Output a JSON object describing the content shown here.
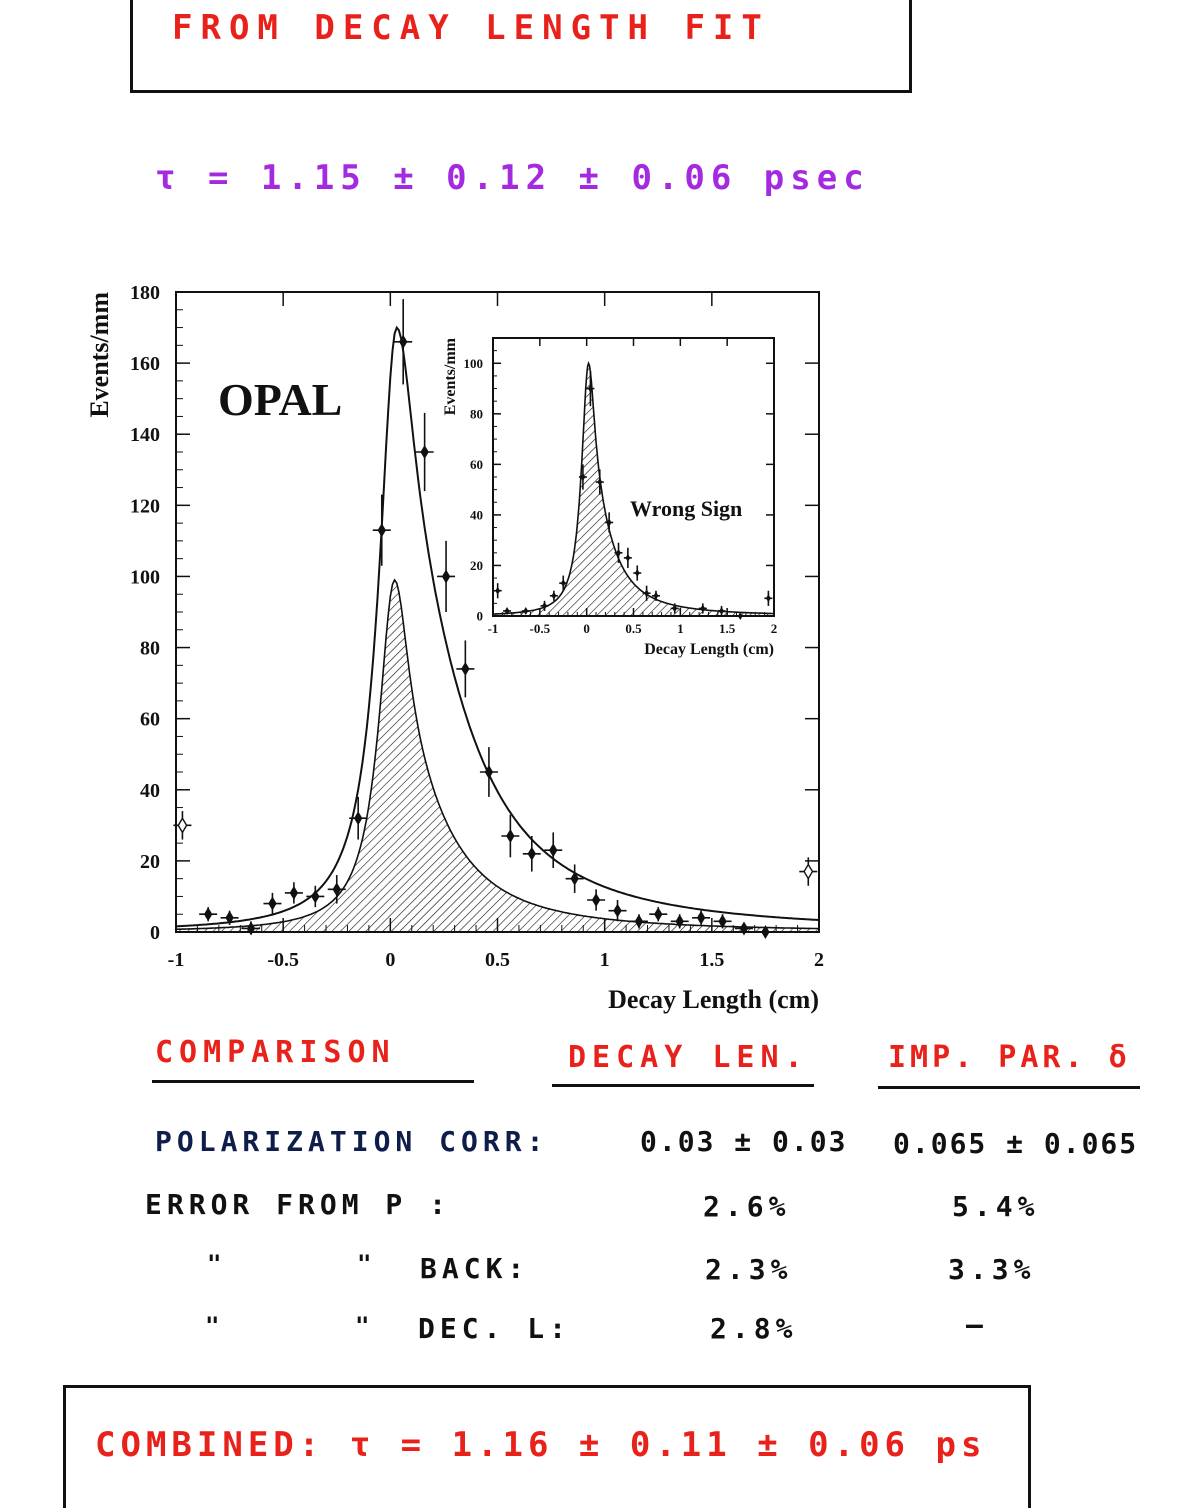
{
  "header": {
    "title": "FROM DECAY LENGTH FIT"
  },
  "lifetime": {
    "text": "τ = 1.15 ± 0.12 ± 0.06 psec"
  },
  "chart_data": [
    {
      "type": "line",
      "label": "OPAL",
      "xlabel": "Decay Length (cm)",
      "ylabel": "Events/mm",
      "xlim": [
        -1,
        2
      ],
      "ylim": [
        0,
        180
      ],
      "xticks": [
        "-1",
        "-0.5",
        "0",
        "0.5",
        "1",
        "1.5",
        "2"
      ],
      "yticks": [
        "0",
        "20",
        "40",
        "60",
        "80",
        "100",
        "120",
        "140",
        "160",
        "180"
      ],
      "points": [
        {
          "x": -0.85,
          "y": 5,
          "err": 2
        },
        {
          "x": -0.75,
          "y": 4,
          "err": 2
        },
        {
          "x": -0.65,
          "y": 1,
          "err": 2
        },
        {
          "x": -0.55,
          "y": 8,
          "err": 3
        },
        {
          "x": -0.45,
          "y": 11,
          "err": 3
        },
        {
          "x": -0.35,
          "y": 10,
          "err": 3
        },
        {
          "x": -0.25,
          "y": 12,
          "err": 4
        },
        {
          "x": -0.15,
          "y": 32,
          "err": 6
        },
        {
          "x": -0.04,
          "y": 113,
          "err": 10
        },
        {
          "x": 0.06,
          "y": 166,
          "err": 12
        },
        {
          "x": 0.16,
          "y": 135,
          "err": 11
        },
        {
          "x": 0.26,
          "y": 100,
          "err": 10
        },
        {
          "x": 0.35,
          "y": 74,
          "err": 8
        },
        {
          "x": 0.46,
          "y": 45,
          "err": 7
        },
        {
          "x": 0.56,
          "y": 27,
          "err": 6
        },
        {
          "x": 0.66,
          "y": 22,
          "err": 5
        },
        {
          "x": 0.76,
          "y": 23,
          "err": 5
        },
        {
          "x": 0.86,
          "y": 15,
          "err": 4
        },
        {
          "x": 0.96,
          "y": 9,
          "err": 3
        },
        {
          "x": 1.06,
          "y": 6,
          "err": 3
        },
        {
          "x": 1.16,
          "y": 3,
          "err": 2
        },
        {
          "x": 1.25,
          "y": 5,
          "err": 2
        },
        {
          "x": 1.35,
          "y": 3,
          "err": 2
        },
        {
          "x": 1.45,
          "y": 4,
          "err": 2
        },
        {
          "x": 1.55,
          "y": 3,
          "err": 2
        },
        {
          "x": 1.65,
          "y": 1,
          "err": 1
        },
        {
          "x": 1.75,
          "y": 0,
          "err": 1
        }
      ],
      "overflow_points": [
        {
          "x": -0.97,
          "y": 30,
          "err": 4
        },
        {
          "x": 1.95,
          "y": 17,
          "err": 4
        }
      ],
      "fit_peak": 170,
      "background_peak": 99
    },
    {
      "type": "line",
      "label": "Wrong Sign",
      "xlabel": "Decay Length (cm)",
      "ylabel": "Events/mm",
      "xlim": [
        -1,
        2
      ],
      "ylim": [
        0,
        110
      ],
      "xticks": [
        "-1",
        "-0.5",
        "0",
        "0.5",
        "1",
        "1.5",
        "2"
      ],
      "yticks": [
        "0",
        "20",
        "40",
        "60",
        "80",
        "100"
      ],
      "points": [
        {
          "x": -0.95,
          "y": 10,
          "err": 3
        },
        {
          "x": -0.85,
          "y": 2,
          "err": 1
        },
        {
          "x": -0.65,
          "y": 2,
          "err": 1
        },
        {
          "x": -0.45,
          "y": 4,
          "err": 2
        },
        {
          "x": -0.35,
          "y": 8,
          "err": 2
        },
        {
          "x": -0.25,
          "y": 13,
          "err": 3
        },
        {
          "x": -0.04,
          "y": 55,
          "err": 5
        },
        {
          "x": 0.04,
          "y": 90,
          "err": 7
        },
        {
          "x": 0.14,
          "y": 53,
          "err": 5
        },
        {
          "x": 0.24,
          "y": 37,
          "err": 4
        },
        {
          "x": 0.34,
          "y": 25,
          "err": 4
        },
        {
          "x": 0.44,
          "y": 23,
          "err": 4
        },
        {
          "x": 0.54,
          "y": 17,
          "err": 3
        },
        {
          "x": 0.64,
          "y": 9,
          "err": 3
        },
        {
          "x": 0.74,
          "y": 8,
          "err": 2
        },
        {
          "x": 0.94,
          "y": 3,
          "err": 2
        },
        {
          "x": 1.24,
          "y": 3,
          "err": 2
        },
        {
          "x": 1.44,
          "y": 2,
          "err": 2
        },
        {
          "x": 1.64,
          "y": 0,
          "err": 1
        },
        {
          "x": 1.94,
          "y": 7,
          "err": 3
        }
      ],
      "fit_peak": 100
    }
  ],
  "comparison": {
    "headers": [
      "COMPARISON",
      "DECAY LEN.",
      "IMP. PAR. δ"
    ],
    "rows": [
      {
        "label": "POLARIZATION CORR:",
        "decay": "0.03 ± 0.03",
        "imp": "0.065 ± 0.065"
      },
      {
        "label": "ERROR FROM P :",
        "decay": "2.6%",
        "imp": "5.4%"
      },
      {
        "ditto1": "\"",
        "ditto2": "\"",
        "label": "BACK:",
        "decay": "2.3%",
        "imp": "3.3%"
      },
      {
        "ditto1": "\"",
        "ditto2": "\"",
        "label": "DEC. L:",
        "decay": "2.8%",
        "imp": "—"
      }
    ]
  },
  "combined": {
    "text": "COMBINED:  τ = 1.16 ± 0.11 ± 0.06 ps"
  },
  "colors": {
    "red": "#e8211b",
    "purple": "#a42ae0",
    "navy": "#0e1d4a",
    "ink": "#111111"
  }
}
